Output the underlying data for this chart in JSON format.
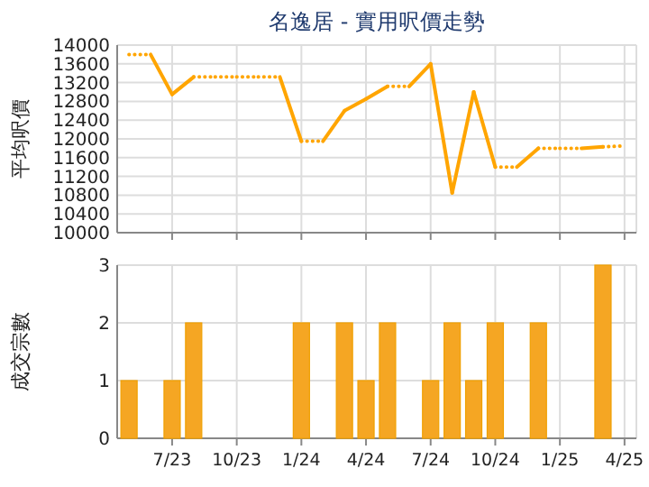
{
  "chart_data": [
    {
      "type": "line",
      "title": "名逸居 - 實用呎價走勢",
      "ylabel": "平均呎價",
      "categories": [
        null,
        null,
        null,
        null,
        null,
        null,
        null,
        null,
        null,
        null,
        null,
        null,
        null,
        null,
        null,
        null,
        null,
        null,
        null,
        null,
        null,
        null,
        null,
        null
      ],
      "series": [
        {
          "color": "#ffa500",
          "values": [
            13800,
            13800,
            12950,
            13320,
            13320,
            13320,
            13320,
            13320,
            11950,
            11950,
            12600,
            12850,
            13120,
            13120,
            13600,
            10850,
            13000,
            11400,
            11400,
            11800,
            11800,
            11800,
            11830,
            11850
          ]
        }
      ],
      "ylim": [
        10000,
        14000
      ],
      "yticks": [
        10000,
        10400,
        10800,
        11200,
        11600,
        12000,
        12400,
        12800,
        13200,
        13600,
        14000
      ],
      "grid": true,
      "tick_labels": "y",
      "marker": "none",
      "line_style": "solid"
    },
    {
      "type": "bar",
      "ylabel": "成交宗數",
      "categories": [
        null,
        null,
        "7/23",
        null,
        null,
        "10/23",
        null,
        null,
        "1/24",
        null,
        null,
        "4/24",
        null,
        null,
        "7/24",
        null,
        null,
        "10/24",
        null,
        null,
        "1/25",
        null,
        null,
        "4/25"
      ],
      "values": [
        1,
        0,
        1,
        2,
        0,
        0,
        0,
        0,
        2,
        0,
        2,
        1,
        2,
        0,
        1,
        2,
        1,
        2,
        0,
        2,
        0,
        0,
        3,
        0
      ],
      "color": "#f5a623",
      "ylim": [
        0,
        3
      ],
      "yticks": [
        0,
        1,
        2,
        3
      ],
      "grid": true
    }
  ]
}
